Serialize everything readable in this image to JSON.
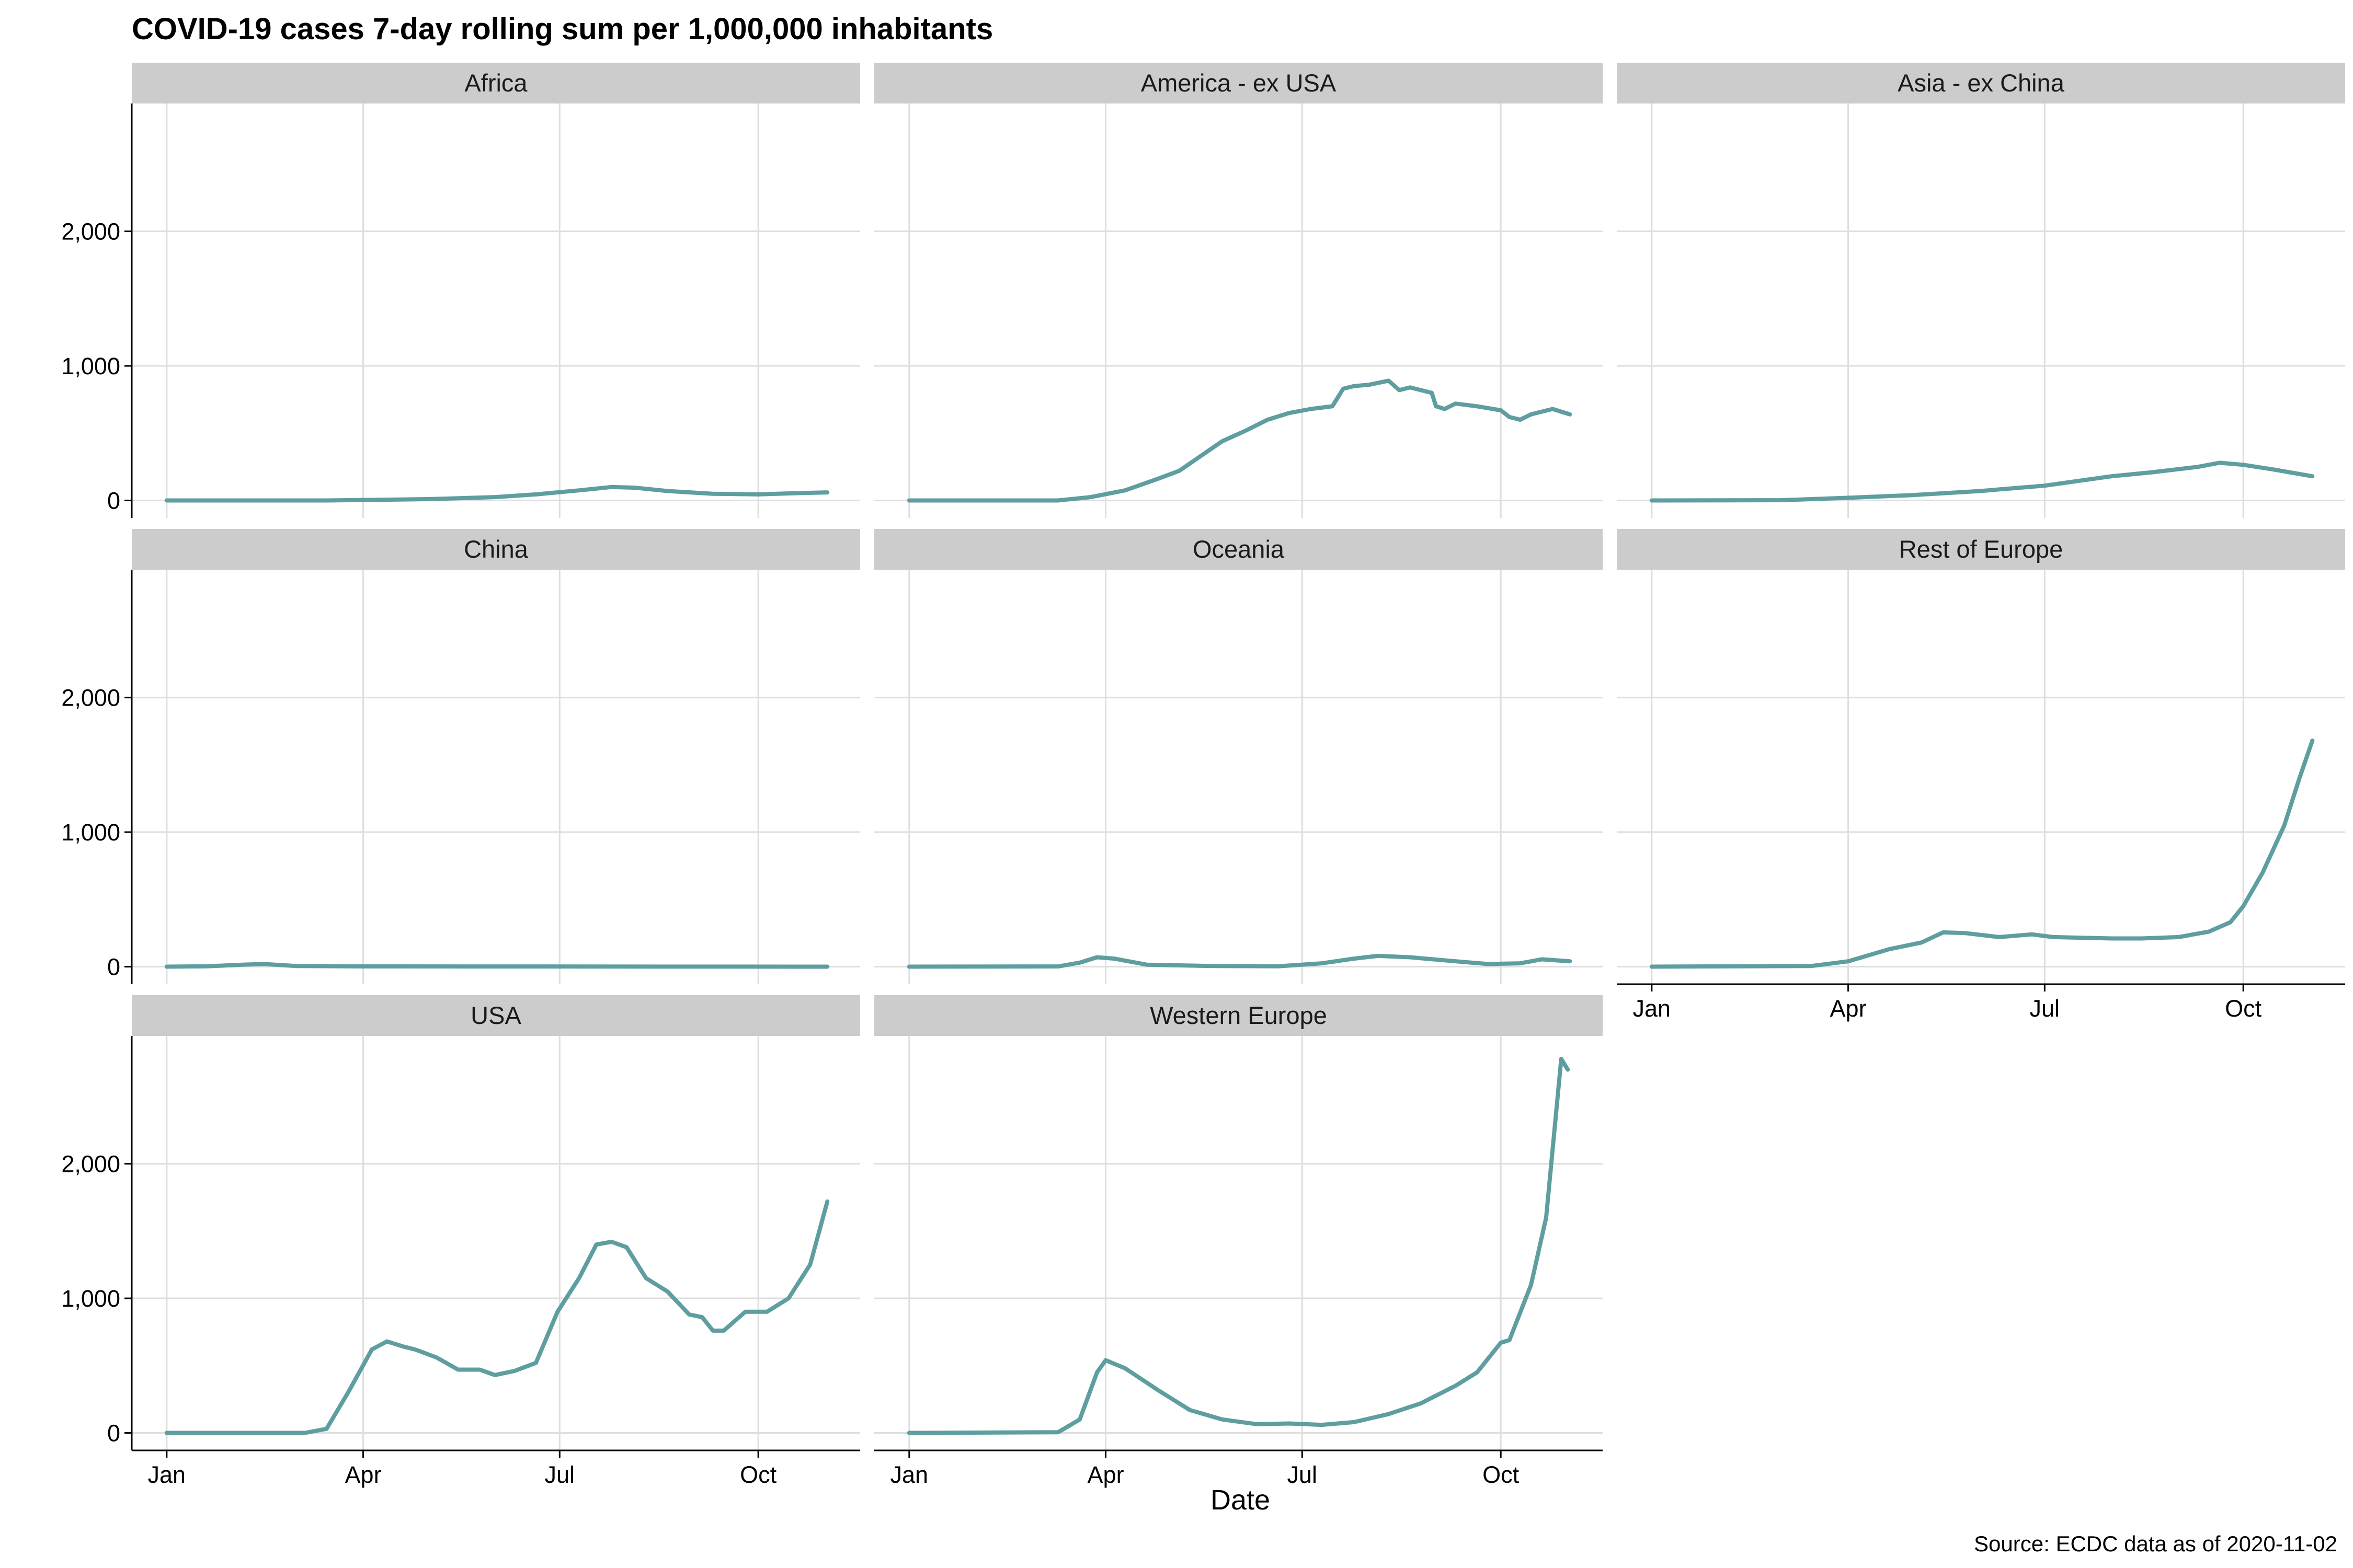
{
  "chart_data": {
    "type": "line",
    "title": "COVID-19 cases 7-day rolling sum per 1,000,000 inhabitants",
    "xlabel": "Date",
    "ylabel": "",
    "caption": "Source: ECDC data as of 2020-11-02",
    "facet_layout": "3 columns, 3 rows",
    "x_range": [
      "2019-12-31",
      "2020-11-02"
    ],
    "x_ticks": [
      {
        "date": "2020-01-01",
        "label": "Jan"
      },
      {
        "date": "2020-04-01",
        "label": "Apr"
      },
      {
        "date": "2020-07-01",
        "label": "Jul"
      },
      {
        "date": "2020-10-01",
        "label": "Oct"
      }
    ],
    "ylim": [
      -130,
      2950
    ],
    "y_ticks": [
      {
        "value": 0,
        "label": "0"
      },
      {
        "value": 1000,
        "label": "1,000"
      },
      {
        "value": 2000,
        "label": "2,000"
      }
    ],
    "grid": true,
    "line_color": "#5f9ea0",
    "strip_color": "#cccccc",
    "panels": [
      {
        "name": "Africa",
        "x": [
          "2020-01-01",
          "2020-03-15",
          "2020-05-01",
          "2020-06-01",
          "2020-06-20",
          "2020-07-10",
          "2020-07-25",
          "2020-08-05",
          "2020-08-20",
          "2020-09-10",
          "2020-10-01",
          "2020-10-20",
          "2020-11-02"
        ],
        "y": [
          0,
          0,
          10,
          25,
          45,
          75,
          100,
          95,
          70,
          50,
          45,
          55,
          60
        ]
      },
      {
        "name": "America - ex USA",
        "x": [
          "2020-01-01",
          "2020-03-10",
          "2020-03-25",
          "2020-04-10",
          "2020-04-25",
          "2020-05-05",
          "2020-05-15",
          "2020-05-25",
          "2020-06-05",
          "2020-06-15",
          "2020-06-25",
          "2020-07-05",
          "2020-07-15",
          "2020-07-20",
          "2020-07-25",
          "2020-08-01",
          "2020-08-10",
          "2020-08-15",
          "2020-08-20",
          "2020-08-30",
          "2020-09-01",
          "2020-09-05",
          "2020-09-10",
          "2020-09-20",
          "2020-10-01",
          "2020-10-05",
          "2020-10-10",
          "2020-10-15",
          "2020-10-25",
          "2020-11-02"
        ],
        "y": [
          0,
          0,
          25,
          75,
          160,
          220,
          330,
          440,
          520,
          600,
          650,
          680,
          700,
          830,
          850,
          860,
          890,
          820,
          840,
          800,
          700,
          680,
          720,
          700,
          670,
          620,
          600,
          640,
          680,
          640
        ]
      },
      {
        "name": "Asia - ex China",
        "x": [
          "2020-01-01",
          "2020-03-01",
          "2020-04-01",
          "2020-05-01",
          "2020-06-01",
          "2020-07-01",
          "2020-08-01",
          "2020-08-20",
          "2020-09-10",
          "2020-09-20",
          "2020-10-01",
          "2020-10-15",
          "2020-11-02"
        ],
        "y": [
          0,
          2,
          20,
          40,
          70,
          110,
          180,
          210,
          250,
          280,
          265,
          230,
          180
        ]
      },
      {
        "name": "China",
        "x": [
          "2020-01-01",
          "2020-01-20",
          "2020-02-05",
          "2020-02-15",
          "2020-03-01",
          "2020-04-01",
          "2020-11-02"
        ],
        "y": [
          0,
          3,
          15,
          20,
          5,
          2,
          0
        ]
      },
      {
        "name": "Oceania",
        "x": [
          "2020-01-01",
          "2020-03-10",
          "2020-03-20",
          "2020-03-28",
          "2020-04-05",
          "2020-04-20",
          "2020-05-20",
          "2020-06-20",
          "2020-07-10",
          "2020-07-25",
          "2020-08-05",
          "2020-08-20",
          "2020-09-10",
          "2020-09-25",
          "2020-10-10",
          "2020-10-20",
          "2020-11-02"
        ],
        "y": [
          0,
          2,
          30,
          70,
          60,
          15,
          5,
          3,
          25,
          60,
          80,
          70,
          40,
          20,
          25,
          55,
          40
        ]
      },
      {
        "name": "Rest of Europe",
        "x": [
          "2020-01-01",
          "2020-03-15",
          "2020-04-01",
          "2020-04-20",
          "2020-05-05",
          "2020-05-15",
          "2020-05-25",
          "2020-06-10",
          "2020-06-25",
          "2020-07-05",
          "2020-08-01",
          "2020-08-15",
          "2020-09-01",
          "2020-09-15",
          "2020-09-25",
          "2020-10-01",
          "2020-10-10",
          "2020-10-20",
          "2020-10-27",
          "2020-11-02"
        ],
        "y": [
          0,
          5,
          40,
          130,
          180,
          255,
          250,
          220,
          240,
          220,
          210,
          210,
          220,
          260,
          330,
          450,
          700,
          1050,
          1400,
          1680
        ]
      },
      {
        "name": "USA",
        "x": [
          "2020-01-01",
          "2020-03-05",
          "2020-03-15",
          "2020-03-25",
          "2020-04-05",
          "2020-04-12",
          "2020-04-20",
          "2020-04-25",
          "2020-05-05",
          "2020-05-15",
          "2020-05-25",
          "2020-06-01",
          "2020-06-10",
          "2020-06-20",
          "2020-06-30",
          "2020-07-10",
          "2020-07-18",
          "2020-07-25",
          "2020-08-01",
          "2020-08-10",
          "2020-08-20",
          "2020-08-30",
          "2020-09-05",
          "2020-09-10",
          "2020-09-15",
          "2020-09-25",
          "2020-10-05",
          "2020-10-15",
          "2020-10-25",
          "2020-11-02"
        ],
        "y": [
          0,
          0,
          30,
          300,
          620,
          680,
          640,
          620,
          560,
          470,
          470,
          430,
          460,
          520,
          900,
          1150,
          1400,
          1420,
          1380,
          1150,
          1050,
          880,
          860,
          760,
          760,
          900,
          900,
          1000,
          1250,
          1720
        ]
      },
      {
        "name": "Western Europe",
        "x": [
          "2020-01-01",
          "2020-03-10",
          "2020-03-20",
          "2020-03-28",
          "2020-04-01",
          "2020-04-10",
          "2020-04-25",
          "2020-05-10",
          "2020-05-25",
          "2020-06-10",
          "2020-06-25",
          "2020-07-10",
          "2020-07-25",
          "2020-08-10",
          "2020-08-25",
          "2020-09-10",
          "2020-09-20",
          "2020-10-01",
          "2020-10-05",
          "2020-10-15",
          "2020-10-22",
          "2020-10-29",
          "2020-11-01"
        ],
        "y": [
          0,
          5,
          100,
          450,
          540,
          480,
          320,
          170,
          100,
          65,
          70,
          60,
          80,
          140,
          220,
          350,
          450,
          670,
          690,
          1100,
          1600,
          2780,
          2700
        ]
      }
    ]
  }
}
